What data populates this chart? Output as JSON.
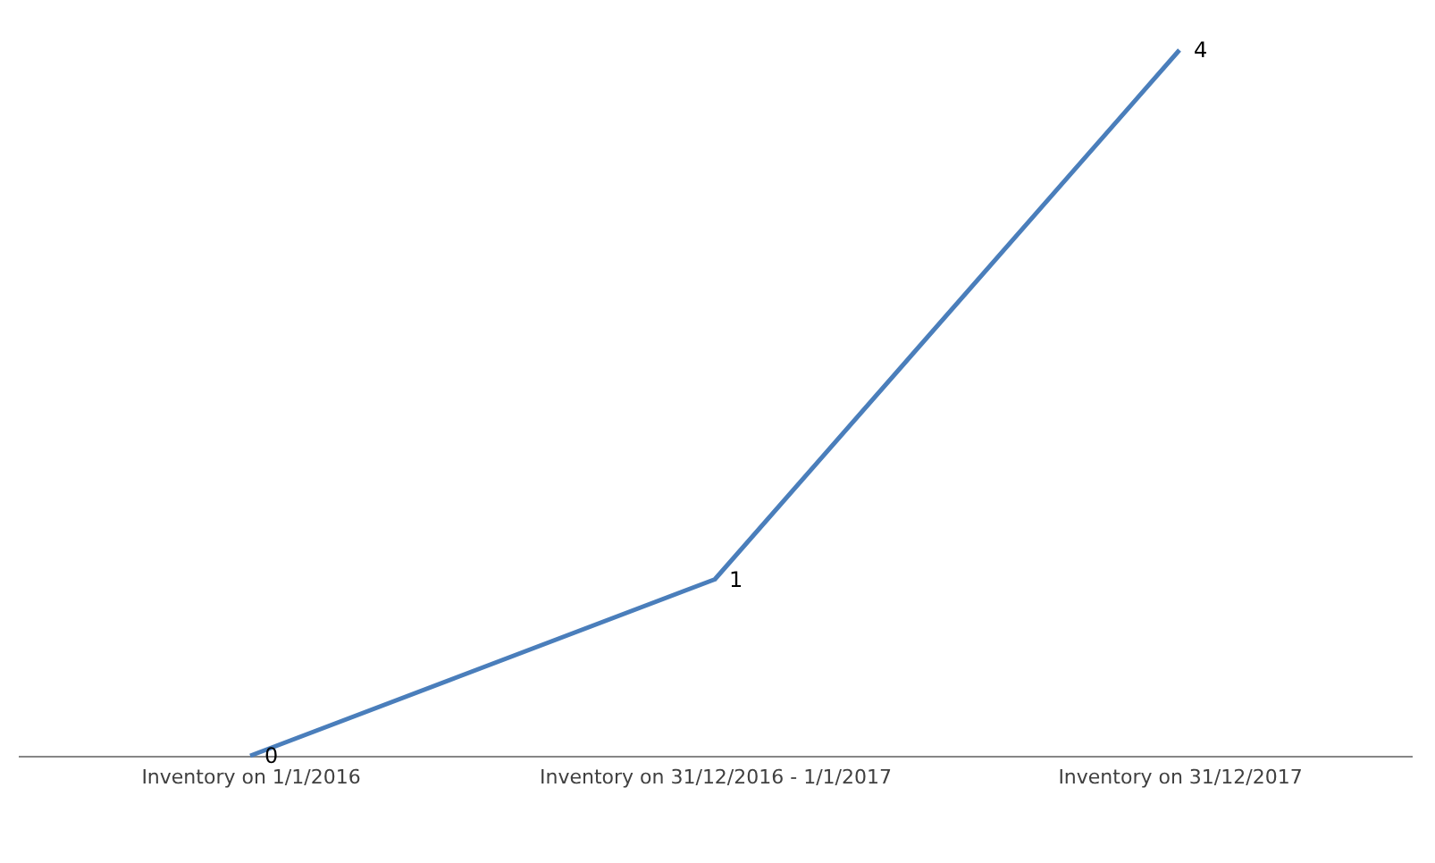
{
  "chart_data": {
    "type": "line",
    "categories": [
      "Inventory on 1/1/2016",
      "Inventory on 31/12/2016 - 1/1/2017",
      "Inventory on 31/12/2017"
    ],
    "series": [
      {
        "color": "#4a7ebb",
        "values": [
          0,
          1,
          4
        ]
      }
    ],
    "data_labels": true,
    "grid": false,
    "marker": "none",
    "line_style": "solid",
    "tick_labels": "x"
  }
}
